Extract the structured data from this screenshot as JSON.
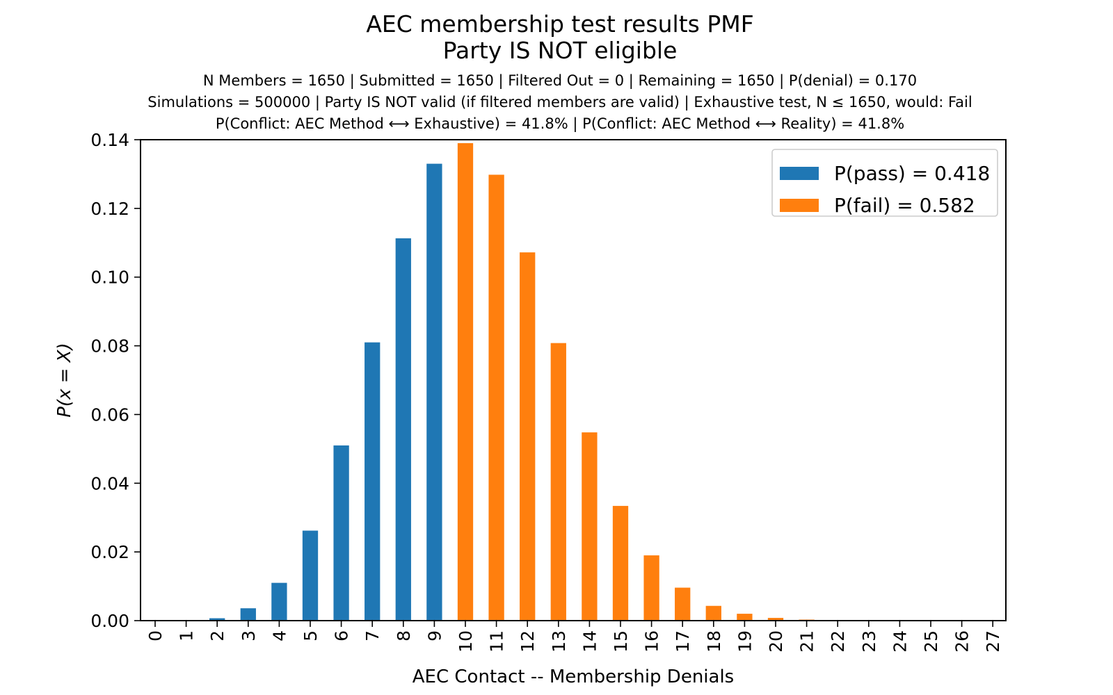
{
  "chart_data": {
    "type": "bar",
    "title": "AEC membership test results PMF",
    "title_line2": "Party IS NOT eligible",
    "subtitle_lines": [
      "N Members = 1650 | Submitted = 1650 | Filtered Out = 0 | Remaining = 1650 | P(denial) = 0.170",
      "Simulations = 500000 | Party IS NOT valid (if filtered members are valid) | Exhaustive test, N ≤ 1650, would: Fail",
      "P(Conflict: AEC Method ⟷ Exhaustive) = 41.8% | P(Conflict: AEC Method ⟷ Reality) = 41.8%"
    ],
    "xlabel": "AEC Contact -- Membership Denials",
    "ylabel": "P(x = X)",
    "ylim": [
      0,
      0.14
    ],
    "yticks": [
      "0.00",
      "0.02",
      "0.04",
      "0.06",
      "0.08",
      "0.10",
      "0.12",
      "0.14"
    ],
    "categories": [
      "0",
      "1",
      "2",
      "3",
      "4",
      "5",
      "6",
      "7",
      "8",
      "9",
      "10",
      "11",
      "12",
      "13",
      "14",
      "15",
      "16",
      "17",
      "18",
      "19",
      "20",
      "21",
      "22",
      "23",
      "24",
      "25",
      "26",
      "27"
    ],
    "grid": false,
    "legend_position": "top-right",
    "series": [
      {
        "name": "P(pass) = 0.418",
        "color": "#1f77b4",
        "values": [
          2e-05,
          0.0001,
          0.0007,
          0.0036,
          0.011,
          0.0262,
          0.051,
          0.081,
          0.1113,
          0.133,
          0,
          0,
          0,
          0,
          0,
          0,
          0,
          0,
          0,
          0,
          0,
          0,
          0,
          0,
          0,
          0,
          0,
          0
        ]
      },
      {
        "name": "P(fail) = 0.582",
        "color": "#ff7f0e",
        "values": [
          0,
          0,
          0,
          0,
          0,
          0,
          0,
          0,
          0,
          0,
          0.139,
          0.1298,
          0.1072,
          0.0808,
          0.0548,
          0.0334,
          0.019,
          0.0096,
          0.0043,
          0.002,
          0.0008,
          0.0003,
          0.0001,
          4e-05,
          1e-05,
          0,
          0,
          0
        ]
      }
    ]
  }
}
